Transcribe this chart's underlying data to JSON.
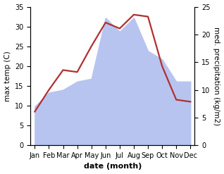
{
  "months": [
    "Jan",
    "Feb",
    "Mar",
    "Apr",
    "May",
    "Jun",
    "Jul",
    "Aug",
    "Sep",
    "Oct",
    "Nov",
    "Dec"
  ],
  "temperature": [
    8.5,
    14.0,
    19.0,
    18.5,
    25.0,
    31.0,
    29.5,
    33.0,
    32.5,
    20.0,
    11.5,
    11.0
  ],
  "precipitation": [
    7.0,
    9.5,
    10.0,
    11.5,
    12.0,
    23.0,
    20.5,
    23.0,
    17.0,
    15.5,
    11.5,
    11.5
  ],
  "temp_color": "#b03030",
  "precip_fill_color": "#b8c4f0",
  "temp_ylim": [
    0,
    35
  ],
  "precip_ylim": [
    0,
    25
  ],
  "temp_yticks": [
    0,
    5,
    10,
    15,
    20,
    25,
    30,
    35
  ],
  "precip_yticks": [
    0,
    5,
    10,
    15,
    20,
    25
  ],
  "xlabel": "date (month)",
  "ylabel_left": "max temp (C)",
  "ylabel_right": "med. precipitation (kg/m2)",
  "xlabel_fontsize": 8,
  "ylabel_fontsize": 7.5,
  "tick_fontsize": 7,
  "line_width": 1.6,
  "temp_scale_max": 35,
  "precip_scale_max": 25
}
